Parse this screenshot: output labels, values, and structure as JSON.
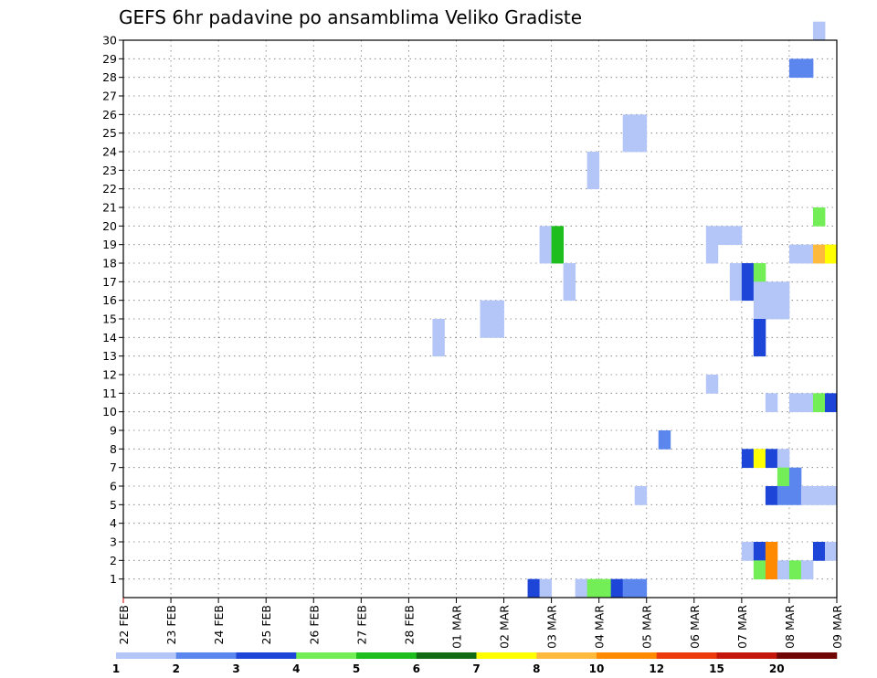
{
  "chart_data": {
    "type": "heatmap",
    "title": "GEFS 6hr padavine po ansamblima Veliko Gradiste",
    "x_ticks": [
      "22 FEB",
      "23 FEB",
      "24 FEB",
      "25 FEB",
      "26 FEB",
      "27 FEB",
      "28 FEB",
      "01 MAR",
      "02 MAR",
      "03 MAR",
      "04 MAR",
      "05 MAR",
      "06 MAR",
      "07 MAR",
      "08 MAR",
      "09 MAR"
    ],
    "y_ticks": [
      "1",
      "2",
      "3",
      "4",
      "5",
      "6",
      "7",
      "8",
      "9",
      "10",
      "11",
      "12",
      "13",
      "14",
      "15",
      "16",
      "17",
      "18",
      "19",
      "20",
      "21",
      "22",
      "23",
      "24",
      "25",
      "26",
      "27",
      "28",
      "29",
      "30"
    ],
    "xlim_days": [
      0,
      15
    ],
    "steps_per_day": 4,
    "ylim": [
      0,
      30
    ],
    "grid": true,
    "colorbar": {
      "colors": [
        "#b3c6f7",
        "#5b86ee",
        "#1d46d8",
        "#73ee57",
        "#1fbe1f",
        "#136b13",
        "#ffff00",
        "#ffba3e",
        "#ff8a00",
        "#ec3a0c",
        "#c5160b",
        "#700505"
      ],
      "labels": [
        "1",
        "2",
        "3",
        "4",
        "5",
        "6",
        "7",
        "8",
        "10",
        "12",
        "15",
        "20"
      ]
    },
    "cells": [
      {
        "member": 30,
        "step": 58,
        "c": 0
      },
      {
        "member": 28,
        "step": 56,
        "c": 1
      },
      {
        "member": 28,
        "step": 57,
        "c": 1
      },
      {
        "member": 25,
        "step": 42,
        "c": 0
      },
      {
        "member": 25,
        "step": 43,
        "c": 0
      },
      {
        "member": 24,
        "step": 42,
        "c": 0
      },
      {
        "member": 24,
        "step": 43,
        "c": 0
      },
      {
        "member": 23,
        "step": 39,
        "c": 0
      },
      {
        "member": 22,
        "step": 39,
        "c": 0
      },
      {
        "member": 20,
        "step": 58,
        "c": 3
      },
      {
        "member": 19,
        "step": 35,
        "c": 0
      },
      {
        "member": 19,
        "step": 36,
        "c": 4
      },
      {
        "member": 19,
        "step": 49,
        "c": 0
      },
      {
        "member": 19,
        "step": 50,
        "c": 0
      },
      {
        "member": 19,
        "step": 51,
        "c": 0
      },
      {
        "member": 18,
        "step": 35,
        "c": 0
      },
      {
        "member": 18,
        "step": 36,
        "c": 4
      },
      {
        "member": 18,
        "step": 49,
        "c": 0
      },
      {
        "member": 18,
        "step": 56,
        "c": 0
      },
      {
        "member": 18,
        "step": 57,
        "c": 0
      },
      {
        "member": 18,
        "step": 58,
        "c": 7
      },
      {
        "member": 18,
        "step": 59,
        "c": 6
      },
      {
        "member": 17,
        "step": 37,
        "c": 0
      },
      {
        "member": 17,
        "step": 51,
        "c": 0
      },
      {
        "member": 17,
        "step": 52,
        "c": 2
      },
      {
        "member": 17,
        "step": 53,
        "c": 3
      },
      {
        "member": 16,
        "step": 37,
        "c": 0
      },
      {
        "member": 16,
        "step": 51,
        "c": 0
      },
      {
        "member": 16,
        "step": 52,
        "c": 2
      },
      {
        "member": 16,
        "step": 53,
        "c": 0
      },
      {
        "member": 16,
        "step": 54,
        "c": 0
      },
      {
        "member": 16,
        "step": 55,
        "c": 0
      },
      {
        "member": 15,
        "step": 53,
        "c": 0
      },
      {
        "member": 15,
        "step": 54,
        "c": 0
      },
      {
        "member": 15,
        "step": 55,
        "c": 0
      },
      {
        "member": 15,
        "step": 30,
        "c": 0
      },
      {
        "member": 15,
        "step": 31,
        "c": 0
      },
      {
        "member": 14,
        "step": 30,
        "c": 0
      },
      {
        "member": 14,
        "step": 31,
        "c": 0
      },
      {
        "member": 14,
        "step": 26,
        "c": 0
      },
      {
        "member": 13,
        "step": 26,
        "c": 0
      },
      {
        "member": 13,
        "step": 53,
        "c": 2
      },
      {
        "member": 14,
        "step": 53,
        "c": 2
      },
      {
        "member": 11,
        "step": 49,
        "c": 0
      },
      {
        "member": 10,
        "step": 54,
        "c": 0
      },
      {
        "member": 10,
        "step": 56,
        "c": 0
      },
      {
        "member": 10,
        "step": 57,
        "c": 0
      },
      {
        "member": 10,
        "step": 58,
        "c": 3
      },
      {
        "member": 10,
        "step": 59,
        "c": 2
      },
      {
        "member": 8,
        "step": 45,
        "c": 1
      },
      {
        "member": 7,
        "step": 52,
        "c": 2
      },
      {
        "member": 7,
        "step": 53,
        "c": 6
      },
      {
        "member": 7,
        "step": 54,
        "c": 2
      },
      {
        "member": 7,
        "step": 55,
        "c": 0
      },
      {
        "member": 6,
        "step": 55,
        "c": 3
      },
      {
        "member": 6,
        "step": 56,
        "c": 1
      },
      {
        "member": 5,
        "step": 43,
        "c": 0
      },
      {
        "member": 5,
        "step": 54,
        "c": 2
      },
      {
        "member": 5,
        "step": 55,
        "c": 1
      },
      {
        "member": 5,
        "step": 56,
        "c": 1
      },
      {
        "member": 5,
        "step": 57,
        "c": 0
      },
      {
        "member": 5,
        "step": 58,
        "c": 0
      },
      {
        "member": 5,
        "step": 59,
        "c": 0
      },
      {
        "member": 2,
        "step": 52,
        "c": 0
      },
      {
        "member": 2,
        "step": 53,
        "c": 2
      },
      {
        "member": 2,
        "step": 54,
        "c": 8
      },
      {
        "member": 2,
        "step": 58,
        "c": 2
      },
      {
        "member": 2,
        "step": 59,
        "c": 0
      },
      {
        "member": 1,
        "step": 53,
        "c": 3
      },
      {
        "member": 1,
        "step": 54,
        "c": 8
      },
      {
        "member": 1,
        "step": 55,
        "c": 0
      },
      {
        "member": 1,
        "step": 56,
        "c": 3
      },
      {
        "member": 1,
        "step": 57,
        "c": 0
      },
      {
        "member": 0,
        "step": 34,
        "c": 2
      },
      {
        "member": 0,
        "step": 35,
        "c": 0
      },
      {
        "member": 0,
        "step": 38,
        "c": 0
      },
      {
        "member": 0,
        "step": 39,
        "c": 3
      },
      {
        "member": 0,
        "step": 40,
        "c": 3
      },
      {
        "member": 0,
        "step": 41,
        "c": 2
      },
      {
        "member": 0,
        "step": 42,
        "c": 1
      },
      {
        "member": 0,
        "step": 43,
        "c": 1
      }
    ]
  }
}
